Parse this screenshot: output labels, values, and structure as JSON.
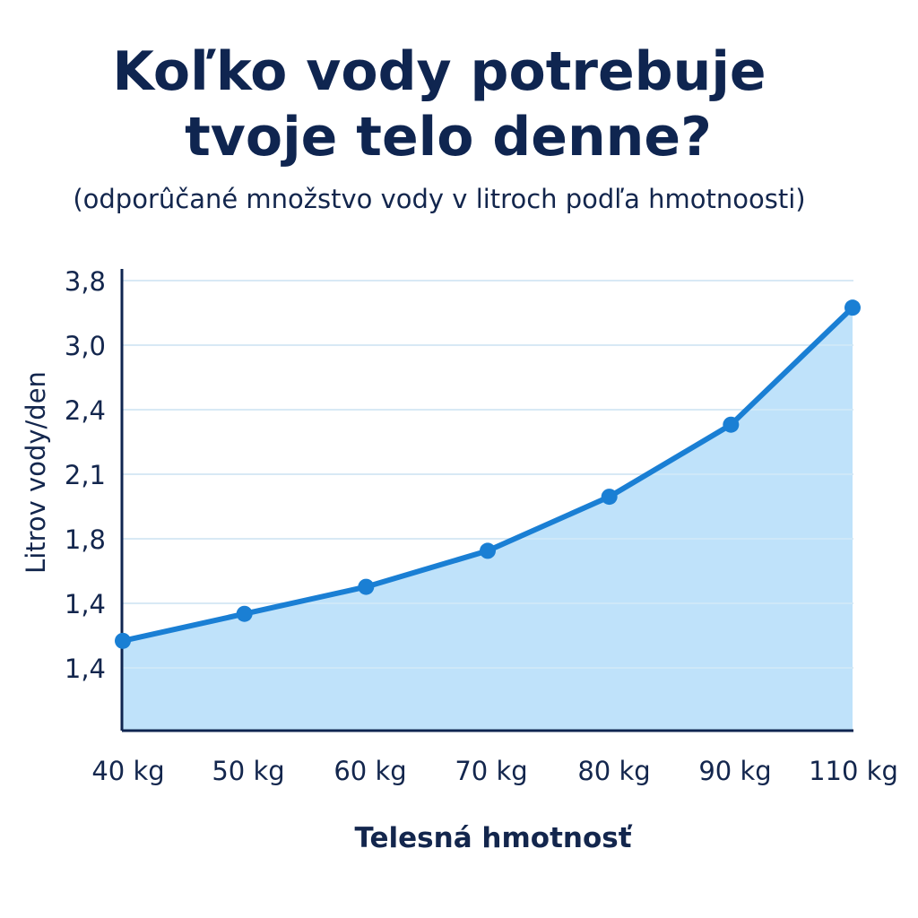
{
  "chart_data": {
    "type": "area",
    "title": "Koľko vody potrebuje tvoje telo denne?",
    "title_lines": [
      "Koľko vody potrebuje",
      "tvoje telo denne?"
    ],
    "subtitle": "(odporûčané množstvo vody v litroch podľa hmotnoosti)",
    "xlabel": "Telesná hmotnosť",
    "ylabel": "Litrov vody/den",
    "categories": [
      "40 kg",
      "50 kg",
      "60 kg",
      "70 kg",
      "80 kg",
      "90 kg",
      "110 kg"
    ],
    "y_tick_labels": [
      "3,8",
      "3,0",
      "2,4",
      "2,1",
      "1,8",
      "1,4",
      "1,4"
    ],
    "series": [
      {
        "values": [
          1.35,
          1.5,
          1.65,
          1.85,
          2.15,
          2.55,
          3.2
        ]
      }
    ],
    "grid": true,
    "line_color": "#1a7fd4",
    "fill_color": "#bfe2fa",
    "grid_color": "#d6e6f2",
    "axis_color": "#0f2550",
    "text_color": "#13264d"
  }
}
